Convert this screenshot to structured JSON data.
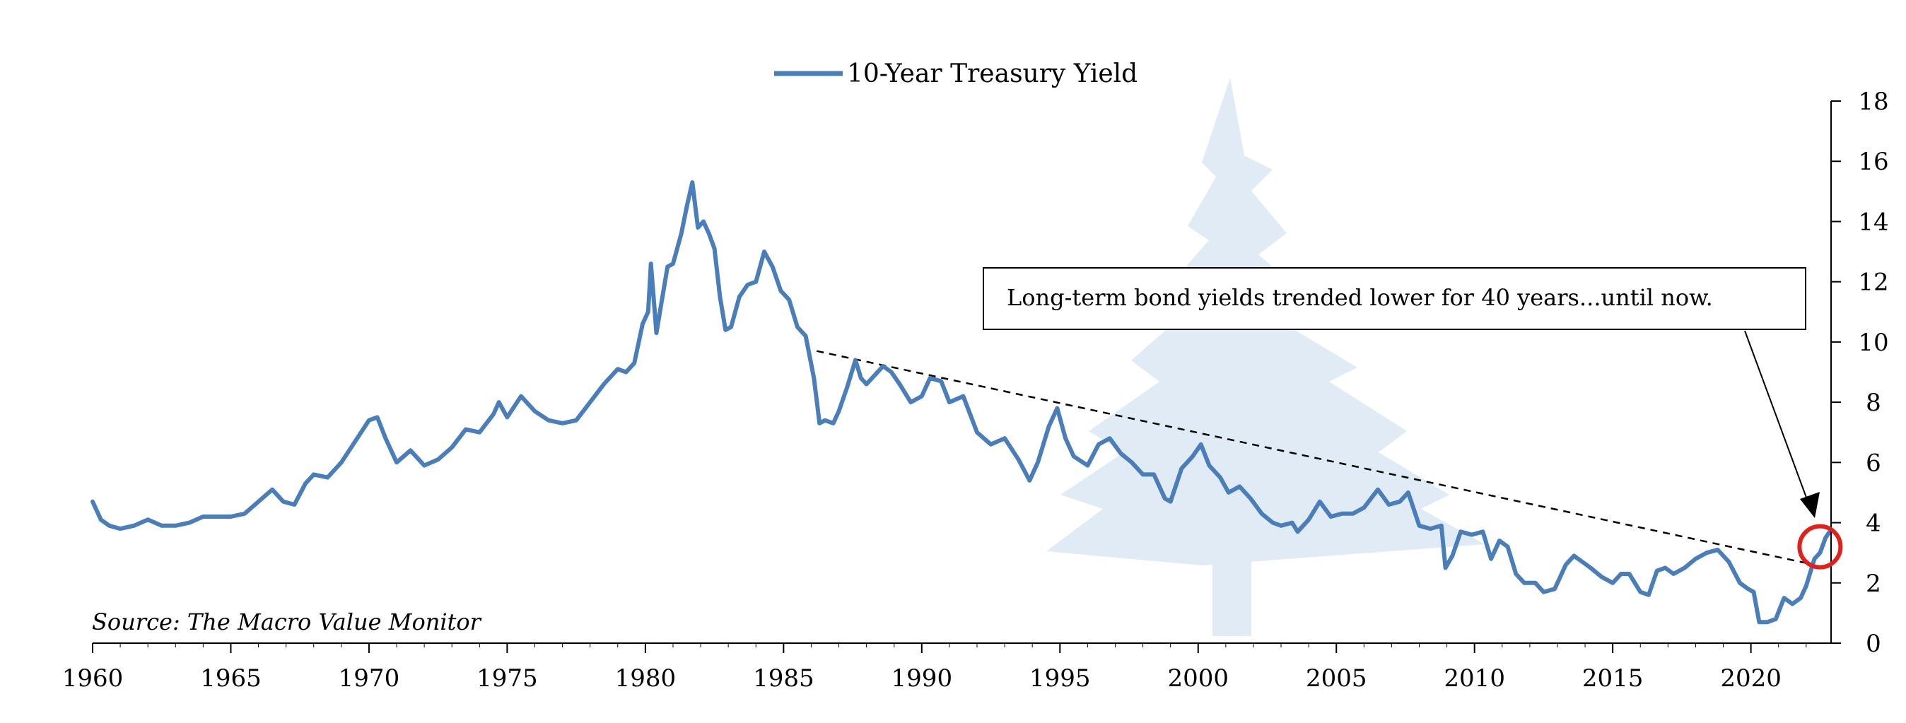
{
  "chart_data": {
    "type": "line",
    "legend": {
      "label": "10-Year Treasury Yield",
      "placement": "top-center"
    },
    "annotation": "Long-term bond yields trended lower for 40 years...until now.",
    "source": "Source: The Macro Value Monitor",
    "xlim": [
      1960,
      2022.9
    ],
    "ylim": [
      0,
      18
    ],
    "x_ticks": [
      "1960",
      "1965",
      "1970",
      "1975",
      "1980",
      "1985",
      "1990",
      "1995",
      "2000",
      "2005",
      "2010",
      "2015",
      "2020"
    ],
    "y_ticks": [
      "0",
      "2",
      "4",
      "6",
      "8",
      "10",
      "12",
      "14",
      "16",
      "18"
    ],
    "y_axis_side": "right",
    "grid": false,
    "colors": {
      "series": "#4a7ebb",
      "trendline": "#000000",
      "highlight_circle": "#e0201a",
      "watermark": "#dde9f5"
    },
    "trendline": {
      "from": [
        1986.2,
        9.7
      ],
      "to": [
        2022.3,
        2.6
      ],
      "style": "dashed"
    },
    "highlight": {
      "x": 2022.5,
      "y": 3.2
    },
    "series": [
      {
        "name": "10-Year Treasury Yield",
        "x": [
          1960.0,
          1960.3,
          1960.6,
          1961.0,
          1961.5,
          1962.0,
          1962.5,
          1963.0,
          1963.5,
          1964.0,
          1964.5,
          1965.0,
          1965.5,
          1966.0,
          1966.5,
          1966.9,
          1967.3,
          1967.7,
          1968.0,
          1968.5,
          1969.0,
          1969.5,
          1970.0,
          1970.3,
          1970.6,
          1971.0,
          1971.5,
          1972.0,
          1972.5,
          1973.0,
          1973.5,
          1974.0,
          1974.5,
          1974.7,
          1975.0,
          1975.5,
          1976.0,
          1976.5,
          1977.0,
          1977.5,
          1978.0,
          1978.5,
          1979.0,
          1979.3,
          1979.6,
          1979.9,
          1980.1,
          1980.2,
          1980.4,
          1980.6,
          1980.8,
          1981.0,
          1981.3,
          1981.5,
          1981.7,
          1981.9,
          1982.1,
          1982.3,
          1982.5,
          1982.7,
          1982.9,
          1983.1,
          1983.4,
          1983.7,
          1984.0,
          1984.3,
          1984.6,
          1984.9,
          1985.2,
          1985.5,
          1985.8,
          1986.1,
          1986.3,
          1986.5,
          1986.8,
          1987.0,
          1987.3,
          1987.6,
          1987.8,
          1988.0,
          1988.3,
          1988.6,
          1988.9,
          1989.2,
          1989.6,
          1990.0,
          1990.3,
          1990.7,
          1991.0,
          1991.5,
          1992.0,
          1992.5,
          1993.0,
          1993.5,
          1993.9,
          1994.2,
          1994.6,
          1994.9,
          1995.2,
          1995.5,
          1996.0,
          1996.4,
          1996.8,
          1997.2,
          1997.6,
          1998.0,
          1998.4,
          1998.8,
          1999.0,
          1999.4,
          1999.8,
          2000.1,
          2000.4,
          2000.8,
          2001.1,
          2001.5,
          2001.9,
          2002.3,
          2002.7,
          2003.0,
          2003.4,
          2003.6,
          2004.0,
          2004.4,
          2004.8,
          2005.2,
          2005.6,
          2006.0,
          2006.5,
          2006.9,
          2007.3,
          2007.6,
          2008.0,
          2008.4,
          2008.8,
          2008.95,
          2009.2,
          2009.5,
          2009.9,
          2010.3,
          2010.6,
          2010.9,
          2011.2,
          2011.5,
          2011.8,
          2012.2,
          2012.5,
          2012.9,
          2013.3,
          2013.6,
          2013.9,
          2014.2,
          2014.6,
          2015.0,
          2015.3,
          2015.6,
          2016.0,
          2016.3,
          2016.6,
          2016.9,
          2017.2,
          2017.6,
          2018.0,
          2018.4,
          2018.8,
          2019.2,
          2019.6,
          2019.9,
          2020.1,
          2020.3,
          2020.6,
          2020.9,
          2021.2,
          2021.5,
          2021.8,
          2022.0,
          2022.3,
          2022.5,
          2022.7,
          2022.85
        ],
        "y": [
          4.7,
          4.1,
          3.9,
          3.8,
          3.9,
          4.1,
          3.9,
          3.9,
          4.0,
          4.2,
          4.2,
          4.2,
          4.3,
          4.7,
          5.1,
          4.7,
          4.6,
          5.3,
          5.6,
          5.5,
          6.0,
          6.7,
          7.4,
          7.5,
          6.8,
          6.0,
          6.4,
          5.9,
          6.1,
          6.5,
          7.1,
          7.0,
          7.6,
          8.0,
          7.5,
          8.2,
          7.7,
          7.4,
          7.3,
          7.4,
          8.0,
          8.6,
          9.1,
          9.0,
          9.3,
          10.6,
          11.0,
          12.6,
          10.3,
          11.4,
          12.5,
          12.6,
          13.6,
          14.5,
          15.3,
          13.8,
          14.0,
          13.6,
          13.1,
          11.5,
          10.4,
          10.5,
          11.5,
          11.9,
          12.0,
          13.0,
          12.5,
          11.7,
          11.4,
          10.5,
          10.2,
          8.8,
          7.3,
          7.4,
          7.3,
          7.7,
          8.5,
          9.4,
          8.8,
          8.6,
          8.9,
          9.2,
          9.0,
          8.6,
          8.0,
          8.2,
          8.8,
          8.7,
          8.0,
          8.2,
          7.0,
          6.6,
          6.8,
          6.1,
          5.4,
          6.0,
          7.2,
          7.8,
          6.8,
          6.2,
          5.9,
          6.6,
          6.8,
          6.3,
          6.0,
          5.6,
          5.6,
          4.8,
          4.7,
          5.8,
          6.2,
          6.6,
          5.9,
          5.5,
          5.0,
          5.2,
          4.8,
          4.3,
          4.0,
          3.9,
          4.0,
          3.7,
          4.1,
          4.7,
          4.2,
          4.3,
          4.3,
          4.5,
          5.1,
          4.6,
          4.7,
          5.0,
          3.9,
          3.8,
          3.9,
          2.5,
          2.9,
          3.7,
          3.6,
          3.7,
          2.8,
          3.4,
          3.2,
          2.3,
          2.0,
          2.0,
          1.7,
          1.8,
          2.6,
          2.9,
          2.7,
          2.5,
          2.2,
          2.0,
          2.3,
          2.3,
          1.7,
          1.6,
          2.4,
          2.5,
          2.3,
          2.5,
          2.8,
          3.0,
          3.1,
          2.7,
          2.0,
          1.8,
          1.7,
          0.7,
          0.7,
          0.8,
          1.5,
          1.3,
          1.5,
          1.9,
          2.8,
          3.0,
          3.5,
          3.7
        ]
      }
    ]
  }
}
